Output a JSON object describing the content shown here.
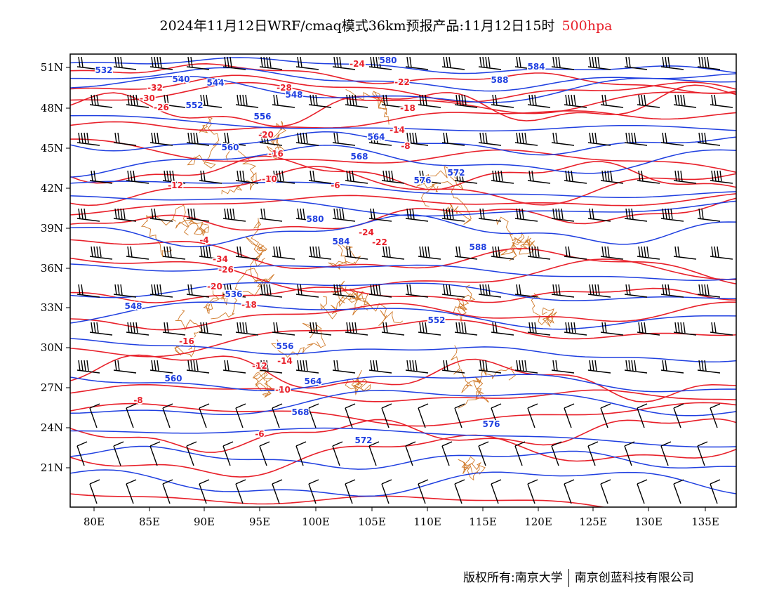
{
  "header": {
    "title": "2024年11月12日WRF/cmaq模式36km预报产品:11月12日15时",
    "level": "500hpa"
  },
  "footer": {
    "copyright": "版权所有:南京大学",
    "company": "南京创蓝科技有限公司"
  },
  "colors": {
    "height_contour": "#1f3fe0",
    "temp_contour": "#e8202a",
    "boundary": "#d07a2a",
    "wind_barb": "#000000"
  },
  "axes": {
    "lon_ticks": [
      "80E",
      "85E",
      "90E",
      "95E",
      "100E",
      "105E",
      "110E",
      "115E",
      "120E",
      "125E",
      "130E",
      "135E"
    ],
    "lat_ticks": [
      "51N",
      "48N",
      "45N",
      "42N",
      "39N",
      "36N",
      "33N",
      "30N",
      "27N",
      "24N",
      "21N"
    ]
  },
  "height_labels": [
    "532",
    "540",
    "544",
    "548",
    "552",
    "556",
    "560",
    "564",
    "568",
    "572",
    "576",
    "580",
    "584",
    "588",
    "536",
    "548",
    "552",
    "556",
    "560",
    "564",
    "568",
    "572",
    "576",
    "580",
    "584",
    "588"
  ],
  "temp_labels": [
    "-32",
    "-30",
    "-28",
    "-26",
    "-24",
    "-22",
    "-20",
    "-18",
    "-16",
    "-14",
    "-12",
    "-10",
    "-8",
    "-6",
    "-4",
    "-34",
    "-26",
    "-24",
    "-22",
    "-20",
    "-18",
    "-16",
    "-14",
    "-12",
    "-10",
    "-8",
    "-6"
  ]
}
